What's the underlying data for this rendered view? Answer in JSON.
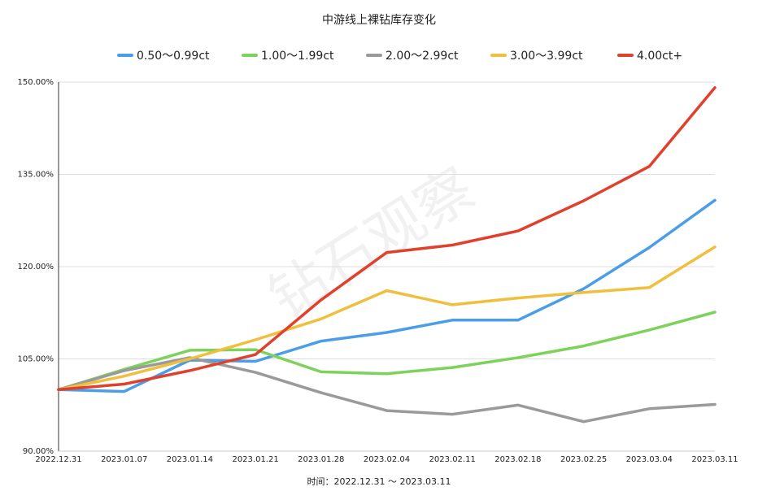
{
  "chart_data": {
    "type": "line",
    "title": "中游线上裸钻库存变化",
    "xlabel": "时间：2022.12.31 ～ 2023.03.11",
    "ylabel": "",
    "categories": [
      "2022.12.31",
      "2023.01.07",
      "2023.01.14",
      "2023.01.21",
      "2023.01.28",
      "2023.02.04",
      "2023.02.11",
      "2023.02.18",
      "2023.02.25",
      "2023.03.04",
      "2023.03.11"
    ],
    "ylim": [
      90,
      150
    ],
    "yticks": [
      {
        "value": 90,
        "label": "90.00%"
      },
      {
        "value": 105,
        "label": "105.00%"
      },
      {
        "value": 120,
        "label": "120.00%"
      },
      {
        "value": 135,
        "label": "135.00%"
      },
      {
        "value": 150,
        "label": "150.00%"
      }
    ],
    "grid": true,
    "legend_position": "top",
    "watermark": "钻石观察",
    "series": [
      {
        "name": "0.50～0.99ct",
        "color": "#4a9ee8",
        "values": [
          100.0,
          99.7,
          104.8,
          104.6,
          107.9,
          109.3,
          111.3,
          111.3,
          116.4,
          123.1,
          130.8
        ]
      },
      {
        "name": "1.00～1.99ct",
        "color": "#7dd35a",
        "values": [
          100.0,
          103.3,
          106.4,
          106.5,
          102.9,
          102.6,
          103.6,
          105.2,
          107.1,
          109.7,
          112.6
        ]
      },
      {
        "name": "2.00～2.99ct",
        "color": "#9a9a9a",
        "values": [
          100.0,
          103.1,
          105.2,
          102.8,
          99.5,
          96.6,
          96.0,
          97.5,
          94.8,
          96.9,
          97.6
        ]
      },
      {
        "name": "3.00～3.99ct",
        "color": "#f1bf3e",
        "values": [
          100.0,
          102.2,
          105.0,
          108.1,
          111.5,
          116.1,
          113.8,
          114.9,
          115.8,
          116.6,
          123.2
        ]
      },
      {
        "name": "4.00ct+",
        "color": "#e0412c",
        "values": [
          100.0,
          100.9,
          103.1,
          105.7,
          114.6,
          122.3,
          123.5,
          125.8,
          130.7,
          136.3,
          149.1
        ]
      }
    ]
  }
}
